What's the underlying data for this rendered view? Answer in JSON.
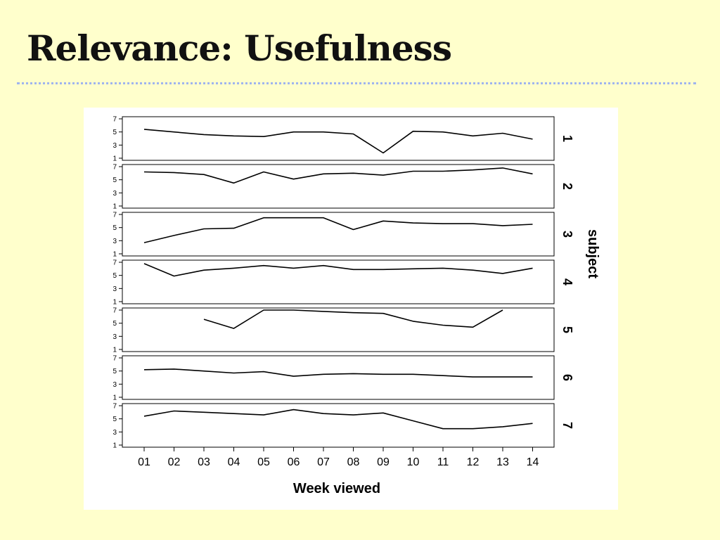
{
  "slide": {
    "title": "Relevance: Usefulness"
  },
  "chart_data": {
    "type": "line",
    "layout": "faceted-panels",
    "x": [
      "01",
      "02",
      "03",
      "04",
      "05",
      "06",
      "07",
      "08",
      "09",
      "10",
      "11",
      "12",
      "13",
      "14"
    ],
    "xlabel": "Week viewed",
    "ylabel": "",
    "ylim": [
      1,
      7
    ],
    "yticks": [
      1,
      3,
      5,
      7
    ],
    "facet_label": "subject",
    "series_color": "#000000",
    "grid": false,
    "series": [
      {
        "name": "1",
        "values": [
          5.4,
          5.0,
          4.6,
          4.4,
          4.3,
          5.0,
          5.0,
          4.7,
          1.8,
          5.1,
          5.0,
          4.4,
          4.8,
          3.9
        ]
      },
      {
        "name": "2",
        "values": [
          6.2,
          6.1,
          5.8,
          4.5,
          6.2,
          5.1,
          5.9,
          6.0,
          5.7,
          6.3,
          6.3,
          6.5,
          6.8,
          5.9
        ]
      },
      {
        "name": "3",
        "values": [
          2.7,
          3.8,
          4.8,
          4.9,
          6.5,
          6.5,
          6.5,
          4.7,
          6.0,
          5.7,
          5.6,
          5.6,
          5.3,
          5.5
        ]
      },
      {
        "name": "4",
        "values": [
          6.8,
          4.9,
          5.8,
          6.1,
          6.5,
          6.1,
          6.5,
          5.9,
          5.9,
          6.0,
          6.1,
          5.8,
          5.3,
          6.1
        ]
      },
      {
        "name": "5",
        "values": [
          null,
          null,
          5.6,
          4.2,
          7.0,
          7.0,
          6.8,
          6.6,
          6.5,
          5.3,
          4.7,
          4.4,
          7.0,
          null
        ]
      },
      {
        "name": "6",
        "values": [
          5.2,
          5.3,
          5.0,
          4.7,
          4.9,
          4.2,
          4.5,
          4.6,
          4.5,
          4.5,
          4.3,
          4.1,
          4.1,
          4.1
        ]
      },
      {
        "name": "7",
        "values": [
          5.4,
          6.2,
          6.0,
          5.8,
          5.6,
          6.4,
          5.8,
          5.6,
          5.9,
          4.7,
          3.5,
          3.5,
          3.8,
          4.3
        ]
      }
    ]
  }
}
